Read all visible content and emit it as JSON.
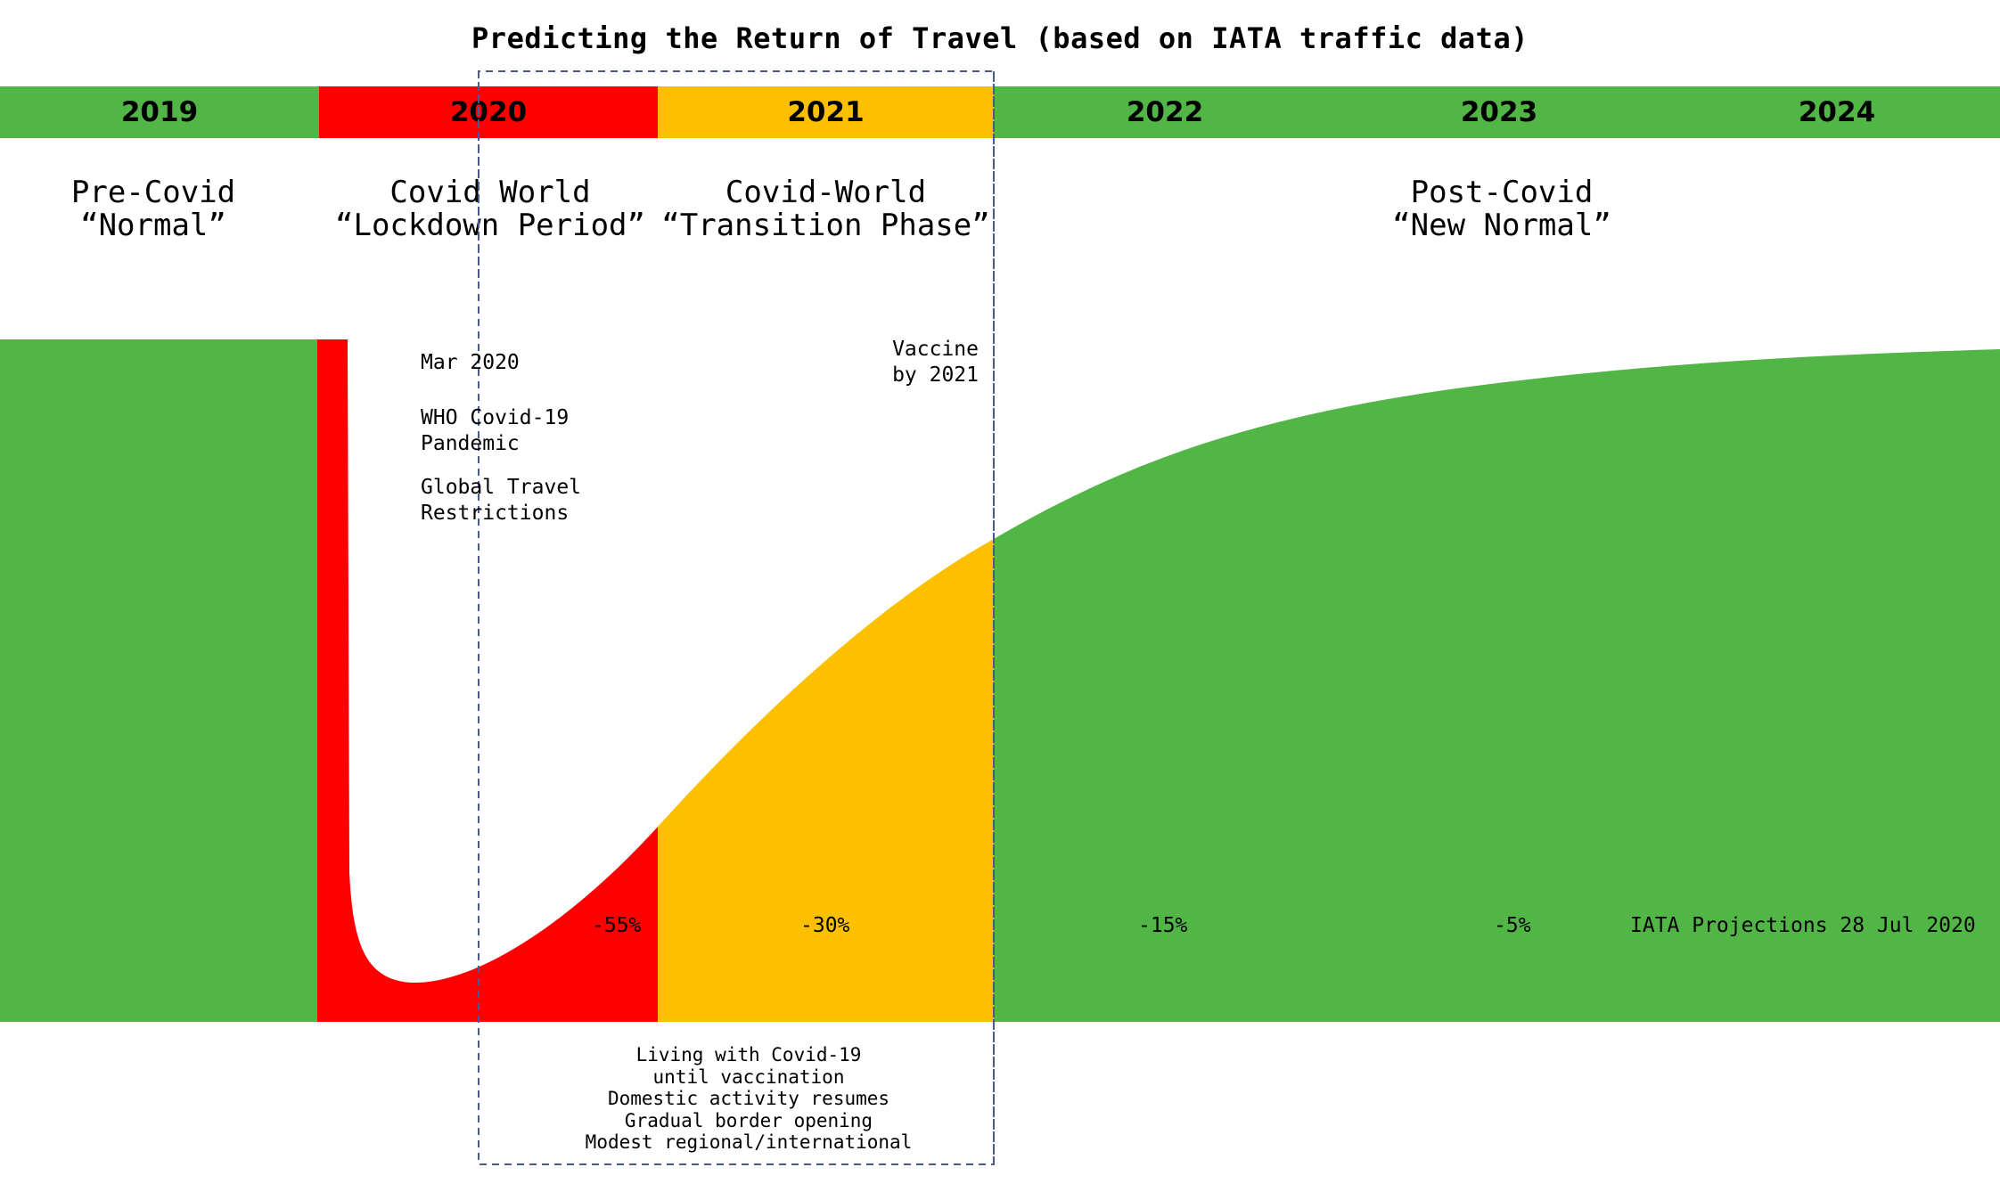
{
  "title": "Predicting the Return of Travel (based on IATA traffic data)",
  "years": [
    {
      "label": "2019",
      "color": "#52b646"
    },
    {
      "label": "2020",
      "color": "#ff0000"
    },
    {
      "label": "2021",
      "color": "#fcc000"
    },
    {
      "label": "2022",
      "color": "#52b646"
    },
    {
      "label": "2023",
      "color": "#52b646"
    },
    {
      "label": "2024",
      "color": "#52b646"
    }
  ],
  "phases": {
    "pre_covid": "Pre-Covid\n“Normal”",
    "lockdown": "Covid World\n“Lockdown Period”",
    "transition": "Covid-World\n“Transition Phase”",
    "post_covid": "Post-Covid\n“New Normal”"
  },
  "annotations": {
    "mar_2020": "Mar 2020",
    "who_pandemic": "WHO Covid-19\nPandemic",
    "travel_restrictions": "Global Travel\nRestrictions",
    "vaccine": "Vaccine\nby 2021"
  },
  "changes": [
    {
      "year": "2020",
      "label": "-55%",
      "value": -55
    },
    {
      "year": "2021",
      "label": "-30%",
      "value": -30
    },
    {
      "year": "2022",
      "label": "-15%",
      "value": -15
    },
    {
      "year": "2023",
      "label": "-5%",
      "value": -5
    }
  ],
  "source_note": "IATA Projections 28 Jul 2020",
  "transition_note": "Living with Covid-19\nuntil vaccination\nDomestic activity resumes\nGradual border opening\nModest regional/international",
  "colors": {
    "green": "#52b646",
    "red": "#ff0000",
    "amber": "#fcc000",
    "dash": "#4a5a8a"
  }
}
